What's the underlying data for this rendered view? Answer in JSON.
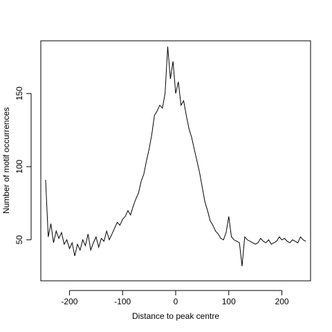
{
  "chart_data": {
    "type": "line",
    "title": "",
    "xlabel": "Distance to peak centre",
    "ylabel": "Number of motif occurrences",
    "xlim": [
      -254,
      254
    ],
    "ylim": [
      22,
      186
    ],
    "grid": false,
    "legend": "none",
    "x_ticks": [
      -200,
      -100,
      0,
      100,
      200
    ],
    "y_ticks": [
      50,
      100,
      150
    ],
    "x_tick_labels": [
      "-200",
      "-100",
      "0",
      "100",
      "200"
    ],
    "y_tick_labels": [
      "50",
      "100",
      "150"
    ],
    "line_color": "#000000",
    "series": [
      {
        "x": [
          -245,
          -240,
          -235,
          -230,
          -225,
          -220,
          -215,
          -210,
          -205,
          -200,
          -195,
          -190,
          -185,
          -180,
          -175,
          -170,
          -165,
          -160,
          -155,
          -150,
          -145,
          -140,
          -135,
          -130,
          -125,
          -120,
          -115,
          -110,
          -105,
          -100,
          -95,
          -90,
          -85,
          -80,
          -75,
          -70,
          -65,
          -60,
          -55,
          -50,
          -45,
          -40,
          -35,
          -30,
          -25,
          -20,
          -15,
          -10,
          -5,
          0,
          5,
          10,
          15,
          20,
          25,
          30,
          35,
          40,
          45,
          50,
          55,
          60,
          65,
          70,
          75,
          80,
          85,
          90,
          95,
          100,
          105,
          110,
          115,
          120,
          125,
          130,
          135,
          140,
          145,
          150,
          155,
          160,
          165,
          170,
          175,
          180,
          185,
          190,
          195,
          200,
          205,
          210,
          215,
          220,
          225,
          230,
          235,
          240,
          245
        ],
        "values": [
          91,
          52,
          61,
          48,
          56,
          51,
          55,
          47,
          50,
          44,
          48,
          39,
          47,
          43,
          50,
          46,
          54,
          43,
          48,
          52,
          45,
          51,
          49,
          56,
          50,
          54,
          58,
          62,
          60,
          64,
          66,
          70,
          67,
          73,
          78,
          82,
          90,
          95,
          104,
          112,
          122,
          135,
          138,
          142,
          140,
          150,
          182,
          160,
          172,
          150,
          158,
          142,
          145,
          135,
          126,
          120,
          112,
          104,
          96,
          86,
          76,
          70,
          63,
          60,
          56,
          54,
          51,
          50,
          55,
          66,
          52,
          50,
          49,
          48,
          32,
          52,
          50,
          49,
          48,
          47,
          48,
          51,
          49,
          48,
          50,
          47,
          48,
          49,
          52,
          50,
          51,
          49,
          48,
          50,
          49,
          48,
          52,
          50,
          49
        ]
      }
    ]
  }
}
